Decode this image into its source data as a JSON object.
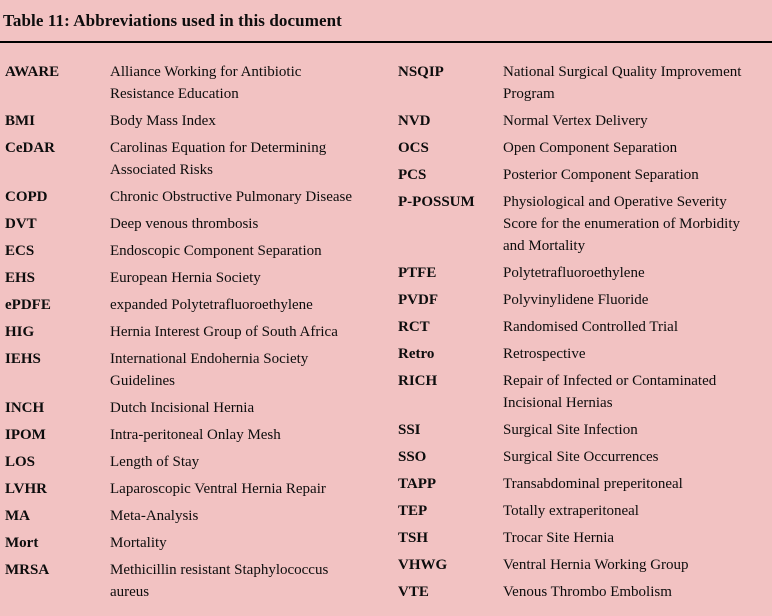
{
  "title": "Table 11: Abbreviations used in this document",
  "colors": {
    "background": "#f2c2c2",
    "text": "#0d0d0d",
    "divider": "#000000"
  },
  "columns": {
    "left": [
      {
        "abbr": "AWARE",
        "definition": "Alliance Working for Antibiotic Resistance Education"
      },
      {
        "abbr": "BMI",
        "definition": "Body Mass Index"
      },
      {
        "abbr": "CeDAR",
        "definition": "Carolinas Equation for Determining Associated Risks"
      },
      {
        "abbr": "COPD",
        "definition": "Chronic Obstructive Pulmonary Disease"
      },
      {
        "abbr": "DVT",
        "definition": "Deep venous thrombosis"
      },
      {
        "abbr": "ECS",
        "definition": "Endoscopic Component Separation"
      },
      {
        "abbr": "EHS",
        "definition": "European Hernia Society"
      },
      {
        "abbr": "ePDFE",
        "definition": "expanded Polytetrafluoroethylene"
      },
      {
        "abbr": "HIG",
        "definition": "Hernia Interest Group of South Africa"
      },
      {
        "abbr": "IEHS",
        "definition": "International Endohernia Society Guidelines"
      },
      {
        "abbr": "INCH",
        "definition": "Dutch Incisional Hernia"
      },
      {
        "abbr": "IPOM",
        "definition": "Intra-peritoneal Onlay Mesh"
      },
      {
        "abbr": "LOS",
        "definition": "Length of Stay"
      },
      {
        "abbr": "LVHR",
        "definition": "Laparoscopic Ventral Hernia Repair"
      },
      {
        "abbr": "MA",
        "definition": "Meta-Analysis"
      },
      {
        "abbr": "Mort",
        "definition": "Mortality"
      },
      {
        "abbr": "MRSA",
        "definition": "Methicillin resistant Staphylococcus aureus"
      }
    ],
    "right": [
      {
        "abbr": "NSQIP",
        "definition": "National Surgical Quality Improvement Program"
      },
      {
        "abbr": "NVD",
        "definition": "Normal Vertex Delivery"
      },
      {
        "abbr": "OCS",
        "definition": "Open Component Separation"
      },
      {
        "abbr": "PCS",
        "definition": "Posterior Component Separation"
      },
      {
        "abbr": "P-POSSUM",
        "definition": "Physiological and Operative Severity Score for the enumeration of Morbidity and Mortality"
      },
      {
        "abbr": "PTFE",
        "definition": "Polytetrafluoroethylene"
      },
      {
        "abbr": "PVDF",
        "definition": "Polyvinylidene Fluoride"
      },
      {
        "abbr": "RCT",
        "definition": "Randomised Controlled Trial"
      },
      {
        "abbr": "Retro",
        "definition": "Retrospective"
      },
      {
        "abbr": "RICH",
        "definition": "Repair of Infected or Contaminated Incisional Hernias"
      },
      {
        "abbr": "SSI",
        "definition": "Surgical Site Infection"
      },
      {
        "abbr": "SSO",
        "definition": "Surgical Site Occurrences"
      },
      {
        "abbr": "TAPP",
        "definition": "Transabdominal preperitoneal"
      },
      {
        "abbr": "TEP",
        "definition": "Totally extraperitoneal"
      },
      {
        "abbr": "TSH",
        "definition": "Trocar Site Hernia"
      },
      {
        "abbr": "VHWG",
        "definition": "Ventral Hernia Working Group"
      },
      {
        "abbr": "VTE",
        "definition": "Venous Thrombo Embolism"
      }
    ]
  }
}
